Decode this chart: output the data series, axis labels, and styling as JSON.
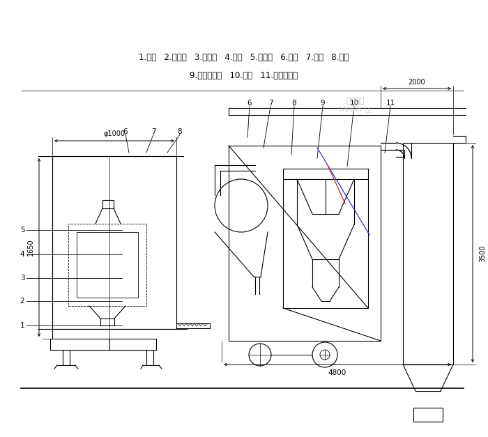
{
  "bg_color": "#ffffff",
  "line_color": "#000000",
  "label_line1": "1.底座   2.回风道   3.激振器   4.筛网   5.进料斗   6.风机   7.绞龙   8.料仓",
  "label_line2": "9.旋风分离器   10.支架   11.布袋除尘器",
  "dim_phi1000": "φ1000",
  "dim_1650": "1650",
  "dim_2000": "2000",
  "dim_3500": "3500",
  "dim_4800": "4800",
  "blue_line": true,
  "red_line": true
}
